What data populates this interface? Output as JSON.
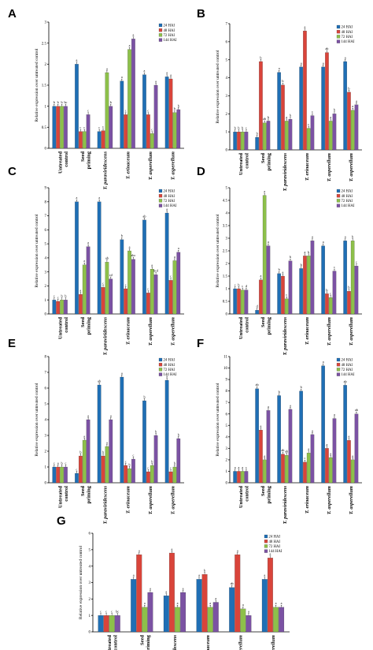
{
  "colors": {
    "h24": "#1f6fb5",
    "h48": "#d9443a",
    "h72": "#8dc04a",
    "h144": "#7b52a3"
  },
  "chart_data": [
    {
      "panel": "A",
      "type": "bar",
      "ylabel": "Relative expression over untreated control",
      "ylim": [
        0,
        3
      ],
      "yticks": [
        0,
        0.5,
        1,
        1.5,
        2,
        2.5,
        3
      ],
      "categories": [
        "Untreated control",
        "Seed priming",
        "T. paraviridescens",
        "T. erinaceum",
        "T. asperellum",
        "T. asperellum"
      ],
      "legend": [
        "24 HAI",
        "48 HAI",
        "72 HAI",
        "144 HAI"
      ],
      "legend_position": "top-right",
      "series": [
        {
          "name": "24 HAI",
          "values": [
            1,
            2,
            0.4,
            1.6,
            1.75,
            1.7
          ],
          "labels": [
            "b",
            "a",
            "c",
            "a",
            "a",
            "a"
          ]
        },
        {
          "name": "48 HAI",
          "values": [
            1,
            0.4,
            0.42,
            0.8,
            0.8,
            1.65
          ],
          "labels": [
            "b",
            "c",
            "c",
            "c",
            "c",
            "a"
          ]
        },
        {
          "name": "72 HAI",
          "values": [
            1,
            0.4,
            1.8,
            2.35,
            0.35,
            0.85
          ],
          "labels": [
            "b",
            "c",
            "a",
            "a",
            "c",
            "b"
          ]
        },
        {
          "name": "144 HAI",
          "values": [
            1,
            0.8,
            1.0,
            2.6,
            1.5,
            0.92
          ],
          "labels": [
            "bc",
            "c",
            "b",
            "a",
            "a",
            "b"
          ]
        }
      ]
    },
    {
      "panel": "B",
      "type": "bar",
      "ylabel": "Relative expression over untreated control",
      "ylim": [
        0,
        7
      ],
      "yticks": [
        0,
        1,
        2,
        3,
        4,
        5,
        6,
        7
      ],
      "categories": [
        "Untreated control",
        "Seed priming",
        "T. paraviridescens",
        "T. erinaceum",
        "T. asperellum",
        "T. asperellum"
      ],
      "legend": [
        "24 HAI",
        "48 HAI",
        "72 HAI",
        "144 HAI"
      ],
      "legend_position": "top-right",
      "series": [
        {
          "name": "24 HAI",
          "values": [
            1,
            0.7,
            4.3,
            4.6,
            4.6,
            4.9
          ],
          "labels": [
            "b",
            "b",
            "a",
            "a",
            "a",
            "a"
          ]
        },
        {
          "name": "48 HAI",
          "values": [
            1,
            4.9,
            3.6,
            6.6,
            5.4,
            3.2
          ],
          "labels": [
            "b",
            "b",
            "b",
            "a",
            "ab",
            "b"
          ]
        },
        {
          "name": "72 HAI",
          "values": [
            1,
            1.5,
            1.6,
            1.2,
            1.6,
            2.2
          ],
          "labels": [
            "b",
            "ab",
            "a",
            "c",
            "a",
            "a"
          ]
        },
        {
          "name": "144 HAI",
          "values": [
            1,
            1.6,
            1.7,
            1.9,
            2.0,
            2.5
          ],
          "labels": [
            "c",
            "b",
            "b",
            "c",
            "b",
            "a"
          ]
        }
      ]
    },
    {
      "panel": "C",
      "type": "bar",
      "ylabel": "Relative expression over untreated control",
      "ylim": [
        0,
        9
      ],
      "yticks": [
        0,
        1,
        2,
        3,
        4,
        5,
        6,
        7,
        8,
        9
      ],
      "categories": [
        "Untreated control",
        "Seed priming",
        "T. paraviridescens",
        "T. erinaceum",
        "T. asperellum",
        "T. asperellum"
      ],
      "legend": [
        "24 HAI",
        "48 HAI",
        "72 HAI",
        "144 HAI"
      ],
      "legend_position": "top-right",
      "series": [
        {
          "name": "24 HAI",
          "values": [
            1,
            8,
            8,
            5.3,
            6.7,
            7.2
          ],
          "labels": [
            "c",
            "a",
            "a",
            "b",
            "ab",
            "a"
          ]
        },
        {
          "name": "48 HAI",
          "values": [
            0.9,
            1.4,
            1.9,
            1.8,
            1.5,
            2.4
          ],
          "labels": [
            "c",
            "a",
            "c",
            "c",
            "c",
            "c"
          ]
        },
        {
          "name": "72 HAI",
          "values": [
            1,
            3.5,
            3.7,
            4.5,
            3.2,
            3.8
          ],
          "labels": [
            "b",
            "a",
            "ab",
            "a",
            "a",
            "a"
          ]
        },
        {
          "name": "144 HAI",
          "values": [
            1,
            4.8,
            2.5,
            3.9,
            2.8,
            4.4
          ],
          "labels": [
            "b",
            "a",
            "cd",
            "abc",
            "bcd",
            "a"
          ]
        }
      ]
    },
    {
      "panel": "D",
      "type": "bar",
      "ylabel": "Relative expression over untreated control",
      "ylim": [
        0,
        5
      ],
      "yticks": [
        0,
        0.5,
        1,
        1.5,
        2,
        2.5,
        3,
        3.5,
        4,
        4.5,
        5
      ],
      "categories": [
        "Untreated control",
        "Seed priming",
        "T. paraviridescens",
        "T. erinaceum",
        "T. asperellum",
        "T. asperellum"
      ],
      "legend": [
        "24 HAI",
        "48 HAI",
        "72 HAI",
        "144 HAI"
      ],
      "legend_position": "top-right",
      "series": [
        {
          "name": "24 HAI",
          "values": [
            1,
            0.15,
            1.6,
            1.8,
            2.7,
            2.9
          ],
          "labels": [
            "c",
            "d",
            "b",
            "b",
            "a",
            "a"
          ]
        },
        {
          "name": "48 HAI",
          "values": [
            1,
            1.35,
            1.5,
            2.3,
            0.8,
            0.9
          ],
          "labels": [
            "b",
            "a",
            "a",
            "a",
            "b",
            "b"
          ]
        },
        {
          "name": "72 HAI",
          "values": [
            0.95,
            4.7,
            0.6,
            2.3,
            0.65,
            2.9
          ],
          "labels": [
            "c",
            "a",
            "c",
            "b",
            "c",
            "b"
          ]
        },
        {
          "name": "144 HAI",
          "values": [
            0.95,
            2.7,
            2.1,
            2.9,
            1.7,
            1.9
          ],
          "labels": [
            "d",
            "a",
            "b",
            "a",
            "c",
            "c"
          ]
        }
      ]
    },
    {
      "panel": "E",
      "type": "bar",
      "ylabel": "Relative expression over untreated control",
      "ylim": [
        0,
        8
      ],
      "yticks": [
        0,
        1,
        2,
        3,
        4,
        5,
        6,
        7,
        8
      ],
      "categories": [
        "Untreated control",
        "Seed priming",
        "T. paraviridescens",
        "T. erinaceum",
        "T. asperellum",
        "T. asperellum"
      ],
      "legend": [
        "24 HAI",
        "48 HAI",
        "72 HAI",
        "144 HAI"
      ],
      "legend_position": "top-right",
      "series": [
        {
          "name": "24 HAI",
          "values": [
            1,
            0.6,
            6.2,
            6.7,
            5.2,
            6.5
          ],
          "labels": [
            "c",
            "c",
            "ab",
            "a",
            "b",
            "a"
          ]
        },
        {
          "name": "48 HAI",
          "values": [
            1,
            1.7,
            1.7,
            1.1,
            0.7,
            0.7
          ],
          "labels": [
            "a",
            "b",
            "b",
            "c",
            "c",
            "c"
          ]
        },
        {
          "name": "72 HAI",
          "values": [
            1,
            2.7,
            2.3,
            0.9,
            1.1,
            1.0
          ],
          "labels": [
            "b",
            "a",
            "a",
            "b",
            "b",
            "b"
          ]
        },
        {
          "name": "144 HAI",
          "values": [
            1,
            4.0,
            4.0,
            1.5,
            3.0,
            2.8
          ],
          "labels": [
            "c",
            "a",
            "a",
            "c",
            "b",
            "b"
          ]
        }
      ]
    },
    {
      "panel": "F",
      "type": "bar",
      "ylabel": "Relative expression over untreated control",
      "ylim": [
        0,
        11
      ],
      "yticks": [
        0,
        1,
        2,
        3,
        4,
        5,
        6,
        7,
        8,
        9,
        10,
        11
      ],
      "categories": [
        "Untreated control",
        "Seed priming",
        "T. paraviridescens",
        "T. erinaceum",
        "T. asperellum",
        "T. asperellum"
      ],
      "legend": [
        "24 HAI",
        "48 HAI",
        "72 HAI",
        "144 HAI"
      ],
      "legend_position": "top-right",
      "series": [
        {
          "name": "24 HAI",
          "values": [
            1,
            8.2,
            7.6,
            8.0,
            10.2,
            8.5
          ],
          "labels": [
            "a",
            "ab",
            "b",
            "b",
            "a",
            "ab"
          ]
        },
        {
          "name": "48 HAI",
          "values": [
            1,
            4.6,
            2.5,
            1.8,
            3.0,
            3.7
          ],
          "labels": [
            "a",
            "a",
            "ab",
            "c",
            "a",
            "a"
          ]
        },
        {
          "name": "72 HAI",
          "values": [
            1,
            2.0,
            2.4,
            2.6,
            2.2,
            2.0
          ],
          "labels": [
            "a",
            "a",
            "ab",
            "a",
            "a",
            "a"
          ]
        },
        {
          "name": "144 HAI",
          "values": [
            1,
            6.3,
            6.4,
            4.2,
            5.6,
            6.0
          ],
          "labels": [
            "c",
            "a",
            "a",
            "a",
            "a",
            "ab"
          ]
        }
      ]
    },
    {
      "panel": "G",
      "type": "bar",
      "ylabel": "Relative expression over untreated control",
      "ylim": [
        0,
        6
      ],
      "yticks": [
        0,
        1,
        2,
        3,
        4,
        5,
        6
      ],
      "categories": [
        "Untreated control",
        "Seed priming",
        "T. paraviridescens",
        "T. erinaceum",
        "T. asperellum",
        "T. asperellum"
      ],
      "legend": [
        "24 HAI",
        "48 HAI",
        "72 HAI",
        "144 HAI"
      ],
      "legend_position": "top-right",
      "series": [
        {
          "name": "24 HAI",
          "values": [
            1,
            3.2,
            2.2,
            3.2,
            2.7,
            3.2
          ],
          "labels": [
            "c",
            "a",
            "a",
            "a",
            "ab",
            "a"
          ]
        },
        {
          "name": "48 HAI",
          "values": [
            1,
            4.7,
            4.8,
            3.5,
            4.7,
            4.5
          ],
          "labels": [
            "c",
            "a",
            "a",
            "b",
            "a",
            "a"
          ]
        },
        {
          "name": "72 HAI",
          "values": [
            1,
            1.5,
            1.5,
            1.5,
            1.4,
            1.5
          ],
          "labels": [
            "c",
            "a",
            "a",
            "a",
            "a",
            "a"
          ]
        },
        {
          "name": "144 HAI",
          "values": [
            1,
            2.4,
            2.4,
            1.8,
            1.0,
            1.5
          ],
          "labels": [
            "bc",
            "a",
            "a",
            "a",
            "a",
            "a"
          ]
        }
      ]
    }
  ]
}
